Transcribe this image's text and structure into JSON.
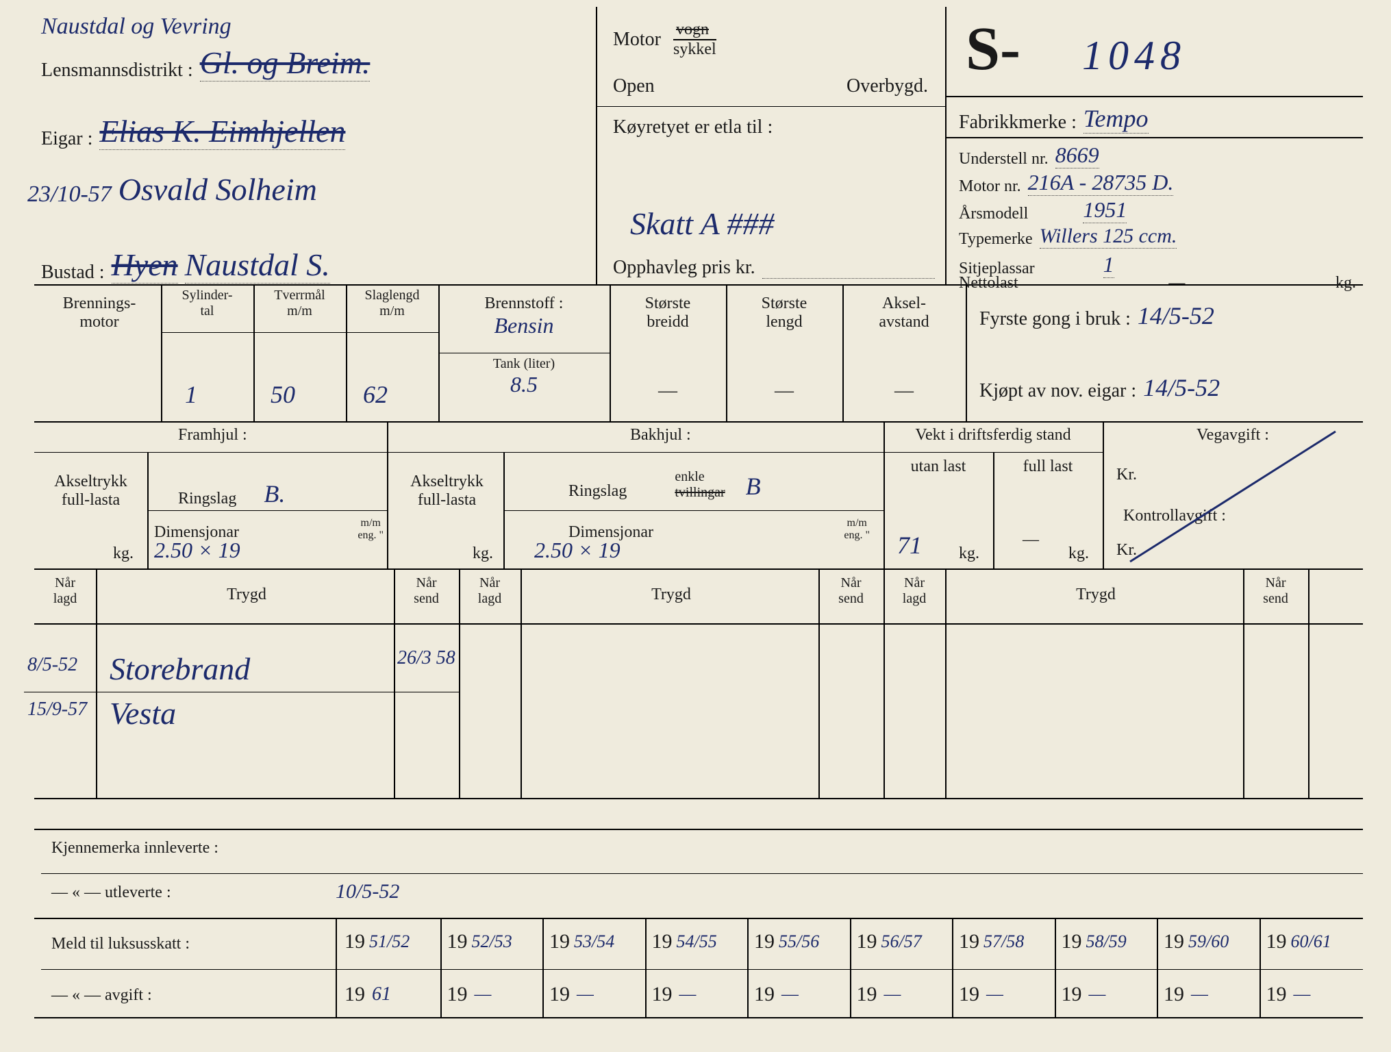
{
  "colors": {
    "paper": "#efebdd",
    "ink": "#1a1a1a",
    "hand": "#1c2a6b"
  },
  "header": {
    "lensmannsdistrikt_label": "Lensmannsdistrikt :",
    "lensmannsdistrikt_top": "Naustdal og Vevring",
    "lensmannsdistrikt_main": "Gl. og Breim.",
    "eigar_label": "Eigar :",
    "eigar_value": "Elias K. Eimhjellen",
    "eigar_date": "23/10-57",
    "eigar_name2": "Osvald Solheim",
    "bustad_label": "Bustad :",
    "bustad_value_strike": "Hyen",
    "bustad_value": "Naustdal S.",
    "motor_label": "Motor",
    "motor_vogn": "vogn",
    "motor_sykkel": "sykkel",
    "open_label": "Open",
    "overbygd_label": "Overbygd.",
    "etla_label": "Køyretyet er etla til :",
    "etla_value": "Skatt   A ###",
    "pris_label": "Opphavleg pris kr.",
    "pris_value": "",
    "s_prefix": "S-",
    "s_number": "1048",
    "fabrikkmerke_label": "Fabrikkmerke :",
    "fabrikkmerke_value": "Tempo",
    "understell_label": "Understell nr.",
    "understell_value": "8669",
    "motornr_label": "Motor nr.",
    "motornr_value": "216A - 28735 D.",
    "arsmodell_label": "Årsmodell",
    "arsmodell_value": "1951",
    "typemerke_label": "Typemerke",
    "typemerke_value": "Willers 125 ccm.",
    "sitjeplassar_label": "Sitjeplassar",
    "sitjeplassar_value": "1",
    "nettolast_label": "Nettolast",
    "nettolast_value": "—",
    "kg": "kg."
  },
  "engine": {
    "brennings_label1": "Brennings-",
    "brennings_label2": "motor",
    "sylinder_l1": "Sylinder-",
    "sylinder_l2": "tal",
    "sylinder_val": "1",
    "tverrmal_l1": "Tverrmål",
    "tverrmal_l2": "m/m",
    "tverrmal_val": "50",
    "slaglengd_l1": "Slaglengd",
    "slaglengd_l2": "m/m",
    "slaglengd_val": "62",
    "brennstoff_label": "Brennstoff :",
    "brennstoff_value": "Bensin",
    "tank_label": "Tank (liter)",
    "tank_value": "8.5",
    "breidd_l1": "Største",
    "breidd_l2": "breidd",
    "breidd_val": "—",
    "lengd_l1": "Største",
    "lengd_l2": "lengd",
    "lengd_val": "—",
    "aksel_l1": "Aksel-",
    "aksel_l2": "avstand",
    "aksel_val": "—",
    "fyrste_label": "Fyrste gong i bruk :",
    "fyrste_value": "14/5-52",
    "kjopt_label": "Kjøpt av nov. eigar :",
    "kjopt_value": "14/5-52"
  },
  "wheels": {
    "framhjul_label": "Framhjul :",
    "bakhjul_label": "Bakhjul :",
    "akseltrykk_l1": "Akseltrykk",
    "akseltrykk_l2": "full-lasta",
    "ringslag_label": "Ringslag",
    "ringslag_f": "B.",
    "ringslag_b": "B",
    "enkle": "enkle",
    "tvillingar": "tvillingar",
    "dimensjonar_label": "Dimensjonar",
    "dim_f": "2.50 × 19",
    "dim_b": "2.50 × 19",
    "mm_eng": "m/m\neng. \"",
    "kg": "kg.",
    "vekt_label": "Vekt i driftsferdig stand",
    "utan_label": "utan last",
    "full_label": "full last",
    "utan_val": "71",
    "full_val": "—",
    "vegavgift_label": "Vegavgift :",
    "kr_label": "Kr.",
    "kontroll_label": "Kontrollavgift :",
    "kr2_label": "Kr."
  },
  "trygd": {
    "nar_lagd": "Når\nlagd",
    "nar_send": "Når\nsend",
    "trygd_label": "Trygd",
    "rows": [
      {
        "lagd": "8/5-52",
        "name": "Storebrand",
        "send": "26/3 58"
      },
      {
        "lagd": "15/9-57",
        "name": "Vesta",
        "send": ""
      }
    ]
  },
  "bottom": {
    "kjenn_inn": "Kjennemerka innleverte :",
    "kjenn_out": "— « —      utleverte :",
    "kjenn_out_val": "10/5-52",
    "meld_label": "Meld til luksusskatt :",
    "avgift_label": "— « —  avgift :",
    "year19": "19",
    "meld_vals": [
      "51/52",
      "52/53",
      "53/54",
      "54/55",
      "55/56",
      "56/57",
      "57/58",
      "58/59",
      "59/60",
      "60/61"
    ],
    "avgift_vals": [
      "61",
      "—",
      "—",
      "—",
      "—",
      "—",
      "—",
      "—",
      "—",
      "—"
    ]
  }
}
